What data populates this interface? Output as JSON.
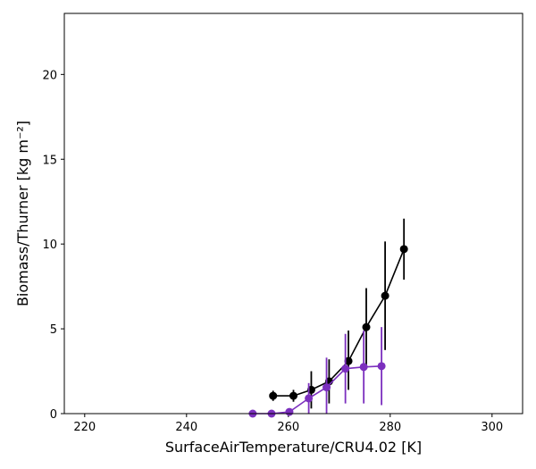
{
  "chart_data": {
    "type": "line",
    "xlabel": "SurfaceAirTemperature/CRU4.02 [K]",
    "ylabel": "Biomass/Thurner [kg m⁻²]",
    "xlim": [
      216,
      306
    ],
    "ylim": [
      0,
      23.6
    ],
    "xticks": [
      220,
      240,
      260,
      280,
      300
    ],
    "yticks": [
      0,
      5,
      10,
      15,
      20
    ],
    "grid": false,
    "series": [
      {
        "color": "#000000",
        "x": [
          257.0,
          261.0,
          264.5,
          268.0,
          271.8,
          275.3,
          279.0,
          282.7
        ],
        "y": [
          1.05,
          1.05,
          1.4,
          1.9,
          3.1,
          5.1,
          6.95,
          9.7
        ],
        "err_low": [
          0.3,
          0.35,
          1.1,
          1.3,
          1.7,
          2.3,
          3.2,
          1.8
        ],
        "err_high": [
          0.3,
          0.35,
          1.1,
          1.3,
          1.8,
          2.3,
          3.2,
          1.8
        ]
      },
      {
        "color": "#7b2fbe",
        "x": [
          253.0,
          256.7,
          260.2,
          264.0,
          267.5,
          271.2,
          274.8,
          278.3
        ],
        "y": [
          0.0,
          0.0,
          0.1,
          0.9,
          1.55,
          2.65,
          2.75,
          2.8
        ],
        "err_low": [
          0.05,
          0.05,
          0.1,
          0.9,
          1.55,
          2.05,
          2.15,
          2.3
        ],
        "err_high": [
          0.05,
          0.05,
          0.1,
          0.9,
          1.75,
          2.05,
          2.15,
          2.3
        ]
      }
    ]
  }
}
